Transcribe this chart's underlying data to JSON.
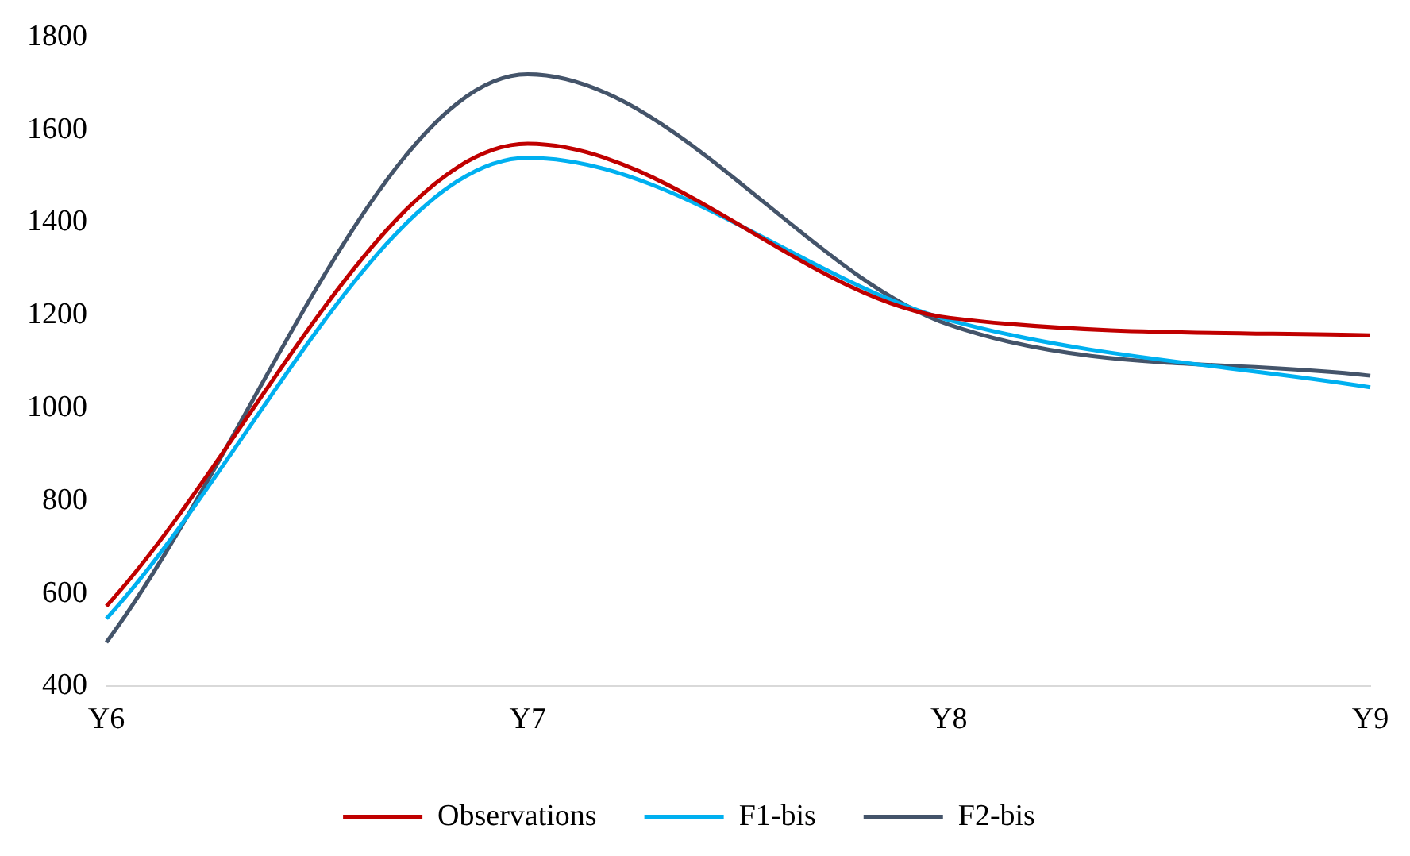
{
  "chart_data": {
    "type": "line",
    "categories": [
      "Y6",
      "Y7",
      "Y8",
      "Y9"
    ],
    "series": [
      {
        "name": "Observations",
        "color": "#c00000",
        "values": [
          573,
          1570,
          1195,
          1157
        ]
      },
      {
        "name": "F1-bis",
        "color": "#00b0f0",
        "values": [
          546,
          1540,
          1190,
          1045
        ]
      },
      {
        "name": "F2-bis",
        "color": "#44546a",
        "values": [
          495,
          1720,
          1180,
          1070
        ]
      }
    ],
    "ylim": [
      400,
      1800
    ],
    "yticks": [
      400,
      600,
      800,
      1000,
      1200,
      1400,
      1600,
      1800
    ],
    "grid": false,
    "legend": "bottom",
    "marker": "none",
    "line_style": "solid"
  }
}
